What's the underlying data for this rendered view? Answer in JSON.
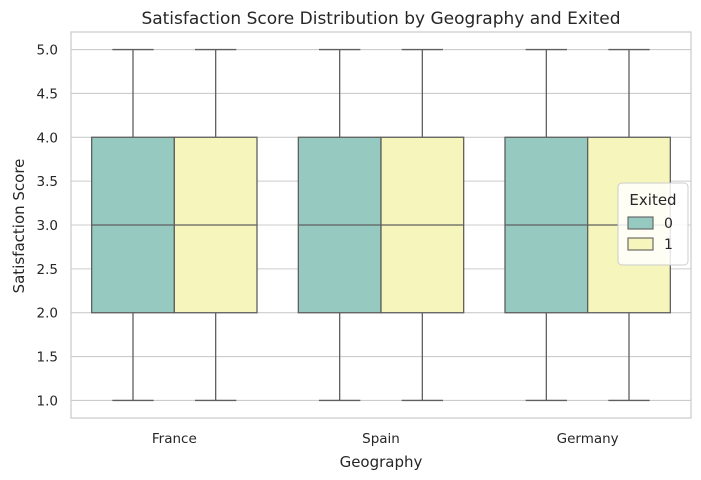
{
  "chart_data": {
    "type": "box",
    "title": "Satisfaction Score Distribution by Geography and Exited",
    "xlabel": "Geography",
    "ylabel": "Satisfaction Score",
    "categories": [
      "France",
      "Spain",
      "Germany"
    ],
    "ylim": [
      0.8,
      5.2
    ],
    "yticks": [
      1.0,
      1.5,
      2.0,
      2.5,
      3.0,
      3.5,
      4.0,
      4.5,
      5.0
    ],
    "ytick_labels": [
      "1.0",
      "1.5",
      "2.0",
      "2.5",
      "3.0",
      "3.5",
      "4.0",
      "4.5",
      "5.0"
    ],
    "grid": true,
    "legend": {
      "title": "Exited",
      "position": "center-right"
    },
    "series": [
      {
        "name": "0",
        "color": "#96cac1",
        "boxes": [
          {
            "category": "France",
            "min": 1.0,
            "q1": 2.0,
            "median": 3.0,
            "q3": 4.0,
            "max": 5.0
          },
          {
            "category": "Spain",
            "min": 1.0,
            "q1": 2.0,
            "median": 3.0,
            "q3": 4.0,
            "max": 5.0
          },
          {
            "category": "Germany",
            "min": 1.0,
            "q1": 2.0,
            "median": 3.0,
            "q3": 4.0,
            "max": 5.0
          }
        ]
      },
      {
        "name": "1",
        "color": "#f6f6bc",
        "boxes": [
          {
            "category": "France",
            "min": 1.0,
            "q1": 2.0,
            "median": 3.0,
            "q3": 4.0,
            "max": 5.0
          },
          {
            "category": "Spain",
            "min": 1.0,
            "q1": 2.0,
            "median": 3.0,
            "q3": 4.0,
            "max": 5.0
          },
          {
            "category": "Germany",
            "min": 1.0,
            "q1": 2.0,
            "median": 3.0,
            "q3": 4.0,
            "max": 5.0
          }
        ]
      }
    ]
  }
}
